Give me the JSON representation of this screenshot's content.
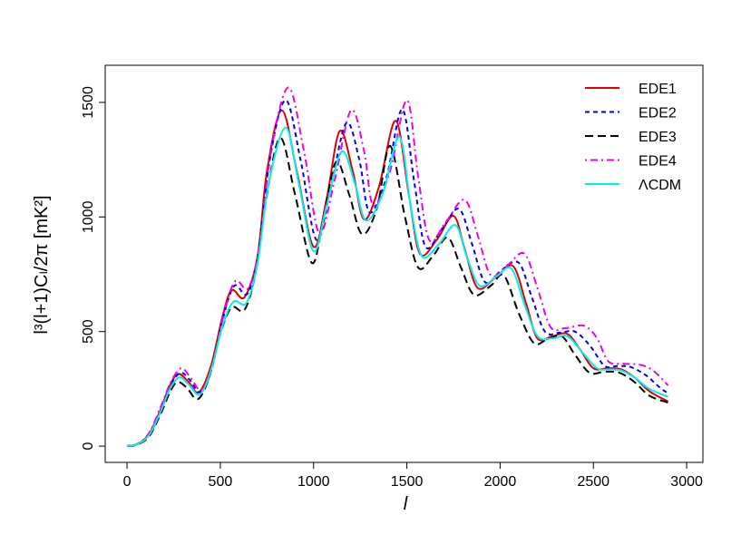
{
  "chart_data": {
    "type": "line",
    "x_label": "l",
    "y_label": "l³(l+1)Cₗ/2π   [mK²]",
    "xlim": [
      -117,
      3087
    ],
    "ylim": [
      -71,
      1662
    ],
    "xticks": [
      0,
      500,
      1000,
      1500,
      2000,
      2500,
      3000
    ],
    "yticks": [
      0,
      500,
      1000,
      1500
    ],
    "legend": "top-right",
    "series": [
      {
        "name": "EDE1",
        "color": "#e00000",
        "linestyle": "solid",
        "x": [
          0,
          60,
          120,
          180,
          230,
          275,
          330,
          385,
          450,
          510,
          560,
          630,
          700,
          750,
          830,
          910,
          1000,
          1070,
          1140,
          1210,
          1270,
          1350,
          1440,
          1510,
          1570,
          1660,
          1750,
          1810,
          1880,
          1980,
          2070,
          2140,
          2200,
          2280,
          2360,
          2430,
          2500,
          2580,
          2650,
          2720,
          2800,
          2900
        ],
        "values": [
          0,
          10,
          55,
          160,
          265,
          315,
          280,
          235,
          350,
          560,
          680,
          650,
          830,
          1200,
          1465,
          1200,
          870,
          1080,
          1375,
          1200,
          990,
          1130,
          1420,
          1100,
          840,
          900,
          1005,
          860,
          690,
          740,
          785,
          620,
          470,
          480,
          490,
          420,
          340,
          340,
          335,
          300,
          240,
          195
        ]
      },
      {
        "name": "EDE2",
        "color": "#0000ee",
        "linestyle": "dashed",
        "x": [
          0,
          60,
          120,
          180,
          230,
          285,
          335,
          395,
          455,
          515,
          575,
          645,
          705,
          765,
          850,
          930,
          1015,
          1090,
          1175,
          1245,
          1300,
          1390,
          1475,
          1540,
          1600,
          1690,
          1780,
          1850,
          1920,
          2010,
          2100,
          2170,
          2240,
          2320,
          2400,
          2480,
          2560,
          2630,
          2700,
          2780,
          2850,
          2900
        ],
        "values": [
          0,
          10,
          50,
          150,
          260,
          320,
          290,
          235,
          340,
          560,
          700,
          665,
          840,
          1250,
          1510,
          1250,
          900,
          1120,
          1410,
          1250,
          1020,
          1170,
          1470,
          1150,
          870,
          950,
          1035,
          880,
          715,
          770,
          800,
          650,
          500,
          495,
          500,
          440,
          350,
          350,
          345,
          310,
          260,
          230
        ]
      },
      {
        "name": "EDE3",
        "color": "#000000",
        "linestyle": "longdash",
        "x": [
          0,
          60,
          120,
          180,
          230,
          270,
          320,
          380,
          440,
          500,
          560,
          630,
          690,
          740,
          820,
          900,
          990,
          1050,
          1120,
          1190,
          1260,
          1340,
          1410,
          1490,
          1560,
          1640,
          1720,
          1790,
          1860,
          1950,
          2020,
          2100,
          2180,
          2250,
          2330,
          2400,
          2480,
          2560,
          2640,
          2720,
          2800,
          2900
        ],
        "values": [
          0,
          8,
          45,
          140,
          235,
          280,
          255,
          205,
          300,
          490,
          605,
          595,
          760,
          1050,
          1345,
          1100,
          800,
          980,
          1240,
          1100,
          925,
          1040,
          1310,
          1000,
          780,
          830,
          910,
          780,
          660,
          700,
          745,
          580,
          450,
          465,
          480,
          400,
          320,
          325,
          320,
          280,
          220,
          190
        ]
      },
      {
        "name": "EDE4",
        "color": "#ee00ee",
        "linestyle": "dotdash",
        "x": [
          0,
          60,
          120,
          180,
          235,
          290,
          340,
          400,
          460,
          520,
          580,
          650,
          710,
          770,
          865,
          950,
          1030,
          1110,
          1200,
          1270,
          1320,
          1410,
          1500,
          1560,
          1620,
          1710,
          1810,
          1880,
          1950,
          2040,
          2130,
          2200,
          2270,
          2350,
          2450,
          2520,
          2580,
          2660,
          2750,
          2820,
          2900
        ],
        "values": [
          0,
          12,
          60,
          170,
          280,
          340,
          300,
          245,
          360,
          580,
          720,
          690,
          870,
          1280,
          1565,
          1280,
          930,
          1150,
          1465,
          1290,
          1050,
          1200,
          1510,
          1180,
          900,
          980,
          1075,
          920,
          745,
          790,
          840,
          690,
          520,
          515,
          525,
          470,
          370,
          360,
          355,
          330,
          265
        ]
      },
      {
        "name": "ΛCDM",
        "color": "#00eeee",
        "linestyle": "solid",
        "x": [
          0,
          60,
          120,
          180,
          230,
          280,
          330,
          390,
          450,
          510,
          570,
          640,
          700,
          760,
          850,
          920,
          1000,
          1070,
          1150,
          1220,
          1280,
          1370,
          1460,
          1520,
          1580,
          1670,
          1760,
          1820,
          1890,
          1980,
          2060,
          2130,
          2200,
          2280,
          2360,
          2440,
          2520,
          2590,
          2650,
          2720,
          2800,
          2900
        ],
        "values": [
          0,
          10,
          50,
          150,
          250,
          300,
          270,
          225,
          330,
          520,
          630,
          625,
          800,
          1150,
          1390,
          1150,
          850,
          1050,
          1285,
          1150,
          985,
          1100,
          1350,
          1050,
          830,
          880,
          965,
          830,
          700,
          740,
          775,
          620,
          480,
          470,
          480,
          410,
          340,
          335,
          330,
          300,
          250,
          215
        ]
      }
    ]
  }
}
